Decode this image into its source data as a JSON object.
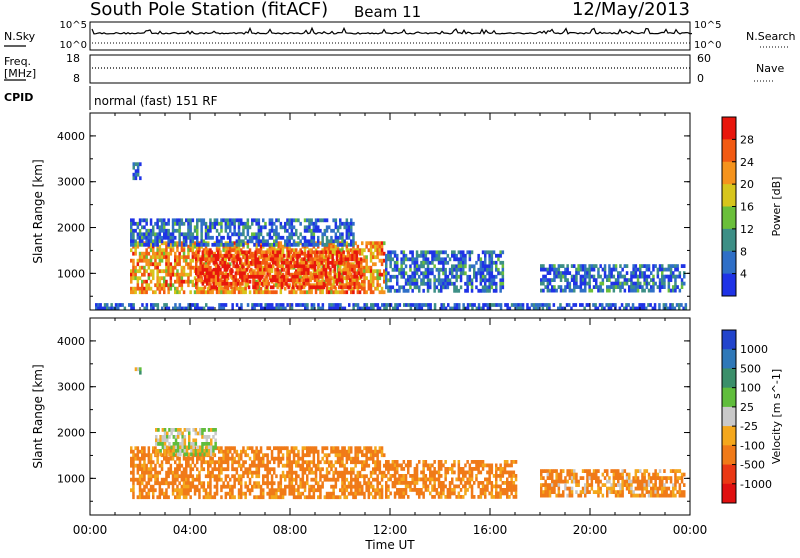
{
  "header": {
    "station": "South Pole Station (fitACF)",
    "beam": "Beam 11",
    "date": "12/May/2013"
  },
  "strips": {
    "nsky_label": "N.Sky",
    "nsearch_label": "N.Search",
    "freq_label_1": "Freq.",
    "freq_label_2": "[MHz]",
    "nave_label": "Nave",
    "cpid_label": "CPID",
    "cpid_value": "normal (fast) 151 RF",
    "noise_ticks_left": [
      "10^5",
      "10^0"
    ],
    "noise_ticks_right": [
      "10^5",
      "10^0"
    ],
    "freq_ticks": [
      "18",
      "8"
    ],
    "nave_ticks": [
      "60",
      "0"
    ]
  },
  "colors": {
    "power_scale": [
      "#1f33e6",
      "#2f6fc7",
      "#3d8f86",
      "#6abf3a",
      "#d7c51c",
      "#f5931c",
      "#f25a12",
      "#e8160c"
    ],
    "velocity_scale": [
      "#2244cc",
      "#2f78b8",
      "#3b8f6a",
      "#60bd3c",
      "#c9c9c9",
      "#f4a71c",
      "#f07a18",
      "#ea3814",
      "#e01010"
    ]
  },
  "chart_data": [
    {
      "type": "heatmap",
      "quantity": "Power",
      "ylabel": "Slant Range [km]",
      "xlabel": "Time UT",
      "yticks": [
        1000,
        2000,
        3000,
        4000
      ],
      "xticks": [
        "00:00",
        "04:00",
        "08:00",
        "12:00",
        "16:00",
        "20:00",
        "00:00"
      ],
      "ylim": [
        200,
        4500
      ],
      "xlim_hours": [
        0,
        24
      ],
      "colorbar": {
        "label": "Power [dB]",
        "ticks": [
          "4",
          "8",
          "12",
          "16",
          "20",
          "24",
          "28"
        ]
      },
      "echo_regions": [
        {
          "t_start": 1.6,
          "t_end": 11.8,
          "r_min": 600,
          "r_max": 1700,
          "value": 22
        },
        {
          "t_start": 4.2,
          "t_end": 10.8,
          "r_min": 700,
          "r_max": 1500,
          "value": 28
        },
        {
          "t_start": 1.6,
          "t_end": 10.5,
          "r_min": 1600,
          "r_max": 2200,
          "value": 6
        },
        {
          "t_start": 11.8,
          "t_end": 16.5,
          "r_min": 600,
          "r_max": 1500,
          "value": 6
        },
        {
          "t_start": 18.0,
          "t_end": 23.8,
          "r_min": 600,
          "r_max": 1200,
          "value": 6
        },
        {
          "t_start": 0.2,
          "t_end": 23.8,
          "r_min": 200,
          "r_max": 350,
          "value": 4
        },
        {
          "t_start": 1.7,
          "t_end": 2.0,
          "r_min": 3100,
          "r_max": 3500,
          "value": 4
        }
      ]
    },
    {
      "type": "heatmap",
      "quantity": "Velocity",
      "ylabel": "Slant Range [km]",
      "xlabel": "Time UT",
      "yticks": [
        1000,
        2000,
        3000,
        4000
      ],
      "xticks": [
        "00:00",
        "04:00",
        "08:00",
        "12:00",
        "16:00",
        "20:00",
        "00:00"
      ],
      "ylim": [
        200,
        4500
      ],
      "xlim_hours": [
        0,
        24
      ],
      "colorbar": {
        "label": "Velocity [m s^-1]",
        "ticks": [
          "1000",
          "500",
          "100",
          "25",
          "-25",
          "-100",
          "-500",
          "-1000"
        ]
      },
      "echo_regions": [
        {
          "t_start": 1.6,
          "t_end": 11.8,
          "r_min": 600,
          "r_max": 1700,
          "value": -200
        },
        {
          "t_start": 2.6,
          "t_end": 5.0,
          "r_min": 1500,
          "r_max": 2100,
          "value": 0
        },
        {
          "t_start": 11.8,
          "t_end": 17.0,
          "r_min": 600,
          "r_max": 1400,
          "value": -200
        },
        {
          "t_start": 18.0,
          "t_end": 23.8,
          "r_min": 600,
          "r_max": 1200,
          "value": -150
        },
        {
          "t_start": 1.7,
          "t_end": 2.0,
          "r_min": 3200,
          "r_max": 3500,
          "value": 60
        }
      ]
    }
  ]
}
